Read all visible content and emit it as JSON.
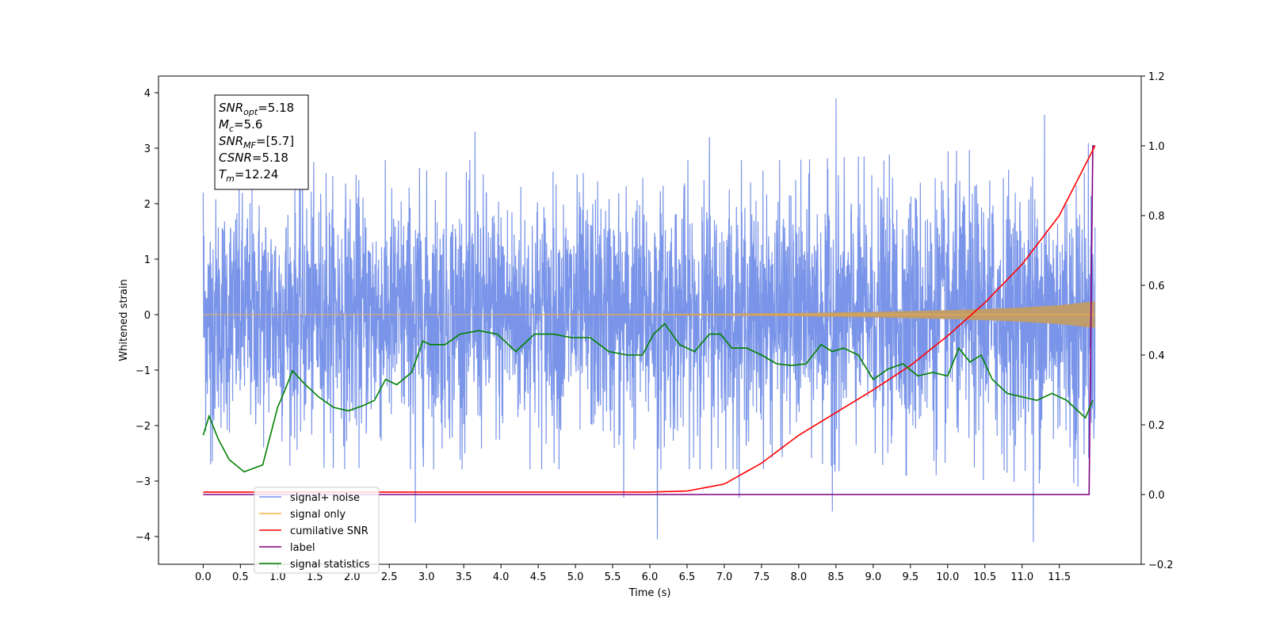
{
  "chart_data": {
    "type": "line",
    "xlabel": "Time (s)",
    "ylabel_left": "Whitened strain",
    "ylabel_right": "",
    "xlim": [
      -0.6,
      12.6
    ],
    "ylim_left": [
      -4.5,
      4.3
    ],
    "ylim_right": [
      -0.2,
      1.2
    ],
    "x_ticks": [
      0.0,
      0.5,
      1.0,
      1.5,
      2.0,
      2.5,
      3.0,
      3.5,
      4.0,
      4.5,
      5.0,
      5.5,
      6.0,
      6.5,
      7.0,
      7.5,
      8.0,
      8.5,
      9.0,
      9.5,
      10.0,
      10.5,
      11.0,
      11.5
    ],
    "x_tick_labels": [
      "0.0",
      "0.5",
      "1.0",
      "1.5",
      "2.0",
      "2.5",
      "3.0",
      "3.5",
      "4.0",
      "4.5",
      "5.0",
      "5.5",
      "6.0",
      "6.5",
      "7.0",
      "7.5",
      "8.0",
      "8.5",
      "9.0",
      "9.5",
      "10.0",
      "10.5",
      "11.0",
      "11.5"
    ],
    "y_ticks_left": [
      -4,
      -3,
      -2,
      -1,
      0,
      1,
      2,
      3,
      4
    ],
    "y_tick_labels_left": [
      "−4",
      "−3",
      "−2",
      "−1",
      "0",
      "1",
      "2",
      "3",
      "4"
    ],
    "y_ticks_right": [
      -0.2,
      0.0,
      0.2,
      0.4,
      0.6,
      0.8,
      1.0,
      1.2
    ],
    "y_tick_labels_right": [
      "−0.2",
      "0.0",
      "0.2",
      "0.4",
      "0.6",
      "0.8",
      "1.0",
      "1.2"
    ],
    "grid": false,
    "legend_placement": "lower-left",
    "annotation": {
      "lines": [
        {
          "base": "SNR",
          "sub": "opt",
          "rest": "=5.18"
        },
        {
          "base": "M",
          "sub": "c",
          "rest": "=5.6"
        },
        {
          "base": "SNR",
          "sub": "MF",
          "rest": "=[5.7]"
        },
        {
          "base": "CSNR",
          "sub": "",
          "rest": "=5.18"
        },
        {
          "base": "T",
          "sub": "m",
          "rest": "=12.24"
        }
      ]
    },
    "series": [
      {
        "name": "signal+ noise",
        "axis": "left",
        "color": "#7994e8",
        "description": "whitened strain noise, envelope approx",
        "x_range": [
          0.0,
          11.98
        ],
        "envelope": {
          "x": [
            0.0,
            2.0,
            4.0,
            6.0,
            8.0,
            10.0,
            11.98
          ],
          "upper_typ": [
            1.7,
            1.8,
            1.8,
            1.8,
            1.8,
            1.9,
            2.0
          ],
          "lower_typ": [
            -1.7,
            -1.8,
            -1.8,
            -1.8,
            -1.8,
            -1.9,
            -2.0
          ]
        },
        "peaks": [
          {
            "x": 0.0,
            "y": 2.2
          },
          {
            "x": 0.1,
            "y": -2.7
          },
          {
            "x": 1.65,
            "y": 2.55
          },
          {
            "x": 2.85,
            "y": -3.75
          },
          {
            "x": 3.65,
            "y": 3.3
          },
          {
            "x": 5.65,
            "y": -3.3
          },
          {
            "x": 6.1,
            "y": -4.05
          },
          {
            "x": 6.8,
            "y": 3.2
          },
          {
            "x": 7.2,
            "y": -3.3
          },
          {
            "x": 8.45,
            "y": -3.55
          },
          {
            "x": 8.5,
            "y": 3.9
          },
          {
            "x": 11.15,
            "y": -4.1
          },
          {
            "x": 11.3,
            "y": 3.6
          },
          {
            "x": 11.75,
            "y": -3.1
          }
        ]
      },
      {
        "name": "signal only",
        "axis": "left",
        "color": "#ffb347",
        "fill_color": "#bf9c6c",
        "x": [
          0.0,
          2.0,
          4.0,
          6.0,
          7.0,
          8.0,
          9.0,
          10.0,
          10.5,
          11.0,
          11.5,
          11.98
        ],
        "amplitude": [
          0.006,
          0.007,
          0.008,
          0.012,
          0.018,
          0.03,
          0.05,
          0.08,
          0.1,
          0.13,
          0.17,
          0.24
        ]
      },
      {
        "name": "cumilative SNR",
        "axis": "right",
        "color": "#ff0000",
        "x": [
          0.0,
          6.0,
          6.5,
          7.0,
          7.5,
          8.0,
          8.5,
          9.0,
          9.5,
          10.0,
          10.5,
          11.0,
          11.5,
          11.98
        ],
        "values": [
          0.007,
          0.007,
          0.01,
          0.03,
          0.09,
          0.17,
          0.235,
          0.3,
          0.37,
          0.455,
          0.55,
          0.66,
          0.8,
          1.0
        ]
      },
      {
        "name": "label",
        "axis": "right",
        "color": "#800080",
        "x": [
          0.0,
          11.9,
          11.95,
          11.98
        ],
        "values": [
          0.0,
          0.0,
          1.0,
          1.0
        ]
      },
      {
        "name": "signal statistics",
        "axis": "right",
        "color": "#008000",
        "x": [
          0.0,
          0.08,
          0.2,
          0.35,
          0.55,
          0.8,
          1.0,
          1.1,
          1.2,
          1.35,
          1.55,
          1.75,
          1.95,
          2.15,
          2.3,
          2.45,
          2.6,
          2.8,
          2.95,
          3.05,
          3.25,
          3.45,
          3.7,
          3.95,
          4.2,
          4.45,
          4.7,
          4.95,
          5.2,
          5.45,
          5.7,
          5.9,
          6.05,
          6.2,
          6.4,
          6.6,
          6.8,
          6.95,
          7.1,
          7.3,
          7.5,
          7.7,
          7.9,
          8.1,
          8.3,
          8.45,
          8.6,
          8.8,
          9.0,
          9.2,
          9.4,
          9.6,
          9.8,
          10.0,
          10.15,
          10.3,
          10.45,
          10.6,
          10.8,
          11.0,
          11.2,
          11.4,
          11.6,
          11.75,
          11.85,
          11.95
        ],
        "values": [
          0.17,
          0.225,
          0.16,
          0.1,
          0.065,
          0.085,
          0.25,
          0.3,
          0.355,
          0.32,
          0.28,
          0.25,
          0.24,
          0.255,
          0.27,
          0.33,
          0.315,
          0.35,
          0.44,
          0.43,
          0.43,
          0.46,
          0.47,
          0.46,
          0.41,
          0.46,
          0.46,
          0.45,
          0.45,
          0.41,
          0.4,
          0.4,
          0.46,
          0.49,
          0.43,
          0.41,
          0.46,
          0.46,
          0.42,
          0.42,
          0.4,
          0.375,
          0.37,
          0.375,
          0.43,
          0.41,
          0.42,
          0.4,
          0.33,
          0.36,
          0.375,
          0.34,
          0.35,
          0.34,
          0.42,
          0.38,
          0.4,
          0.33,
          0.29,
          0.28,
          0.27,
          0.29,
          0.27,
          0.24,
          0.22,
          0.27
        ]
      }
    ]
  }
}
